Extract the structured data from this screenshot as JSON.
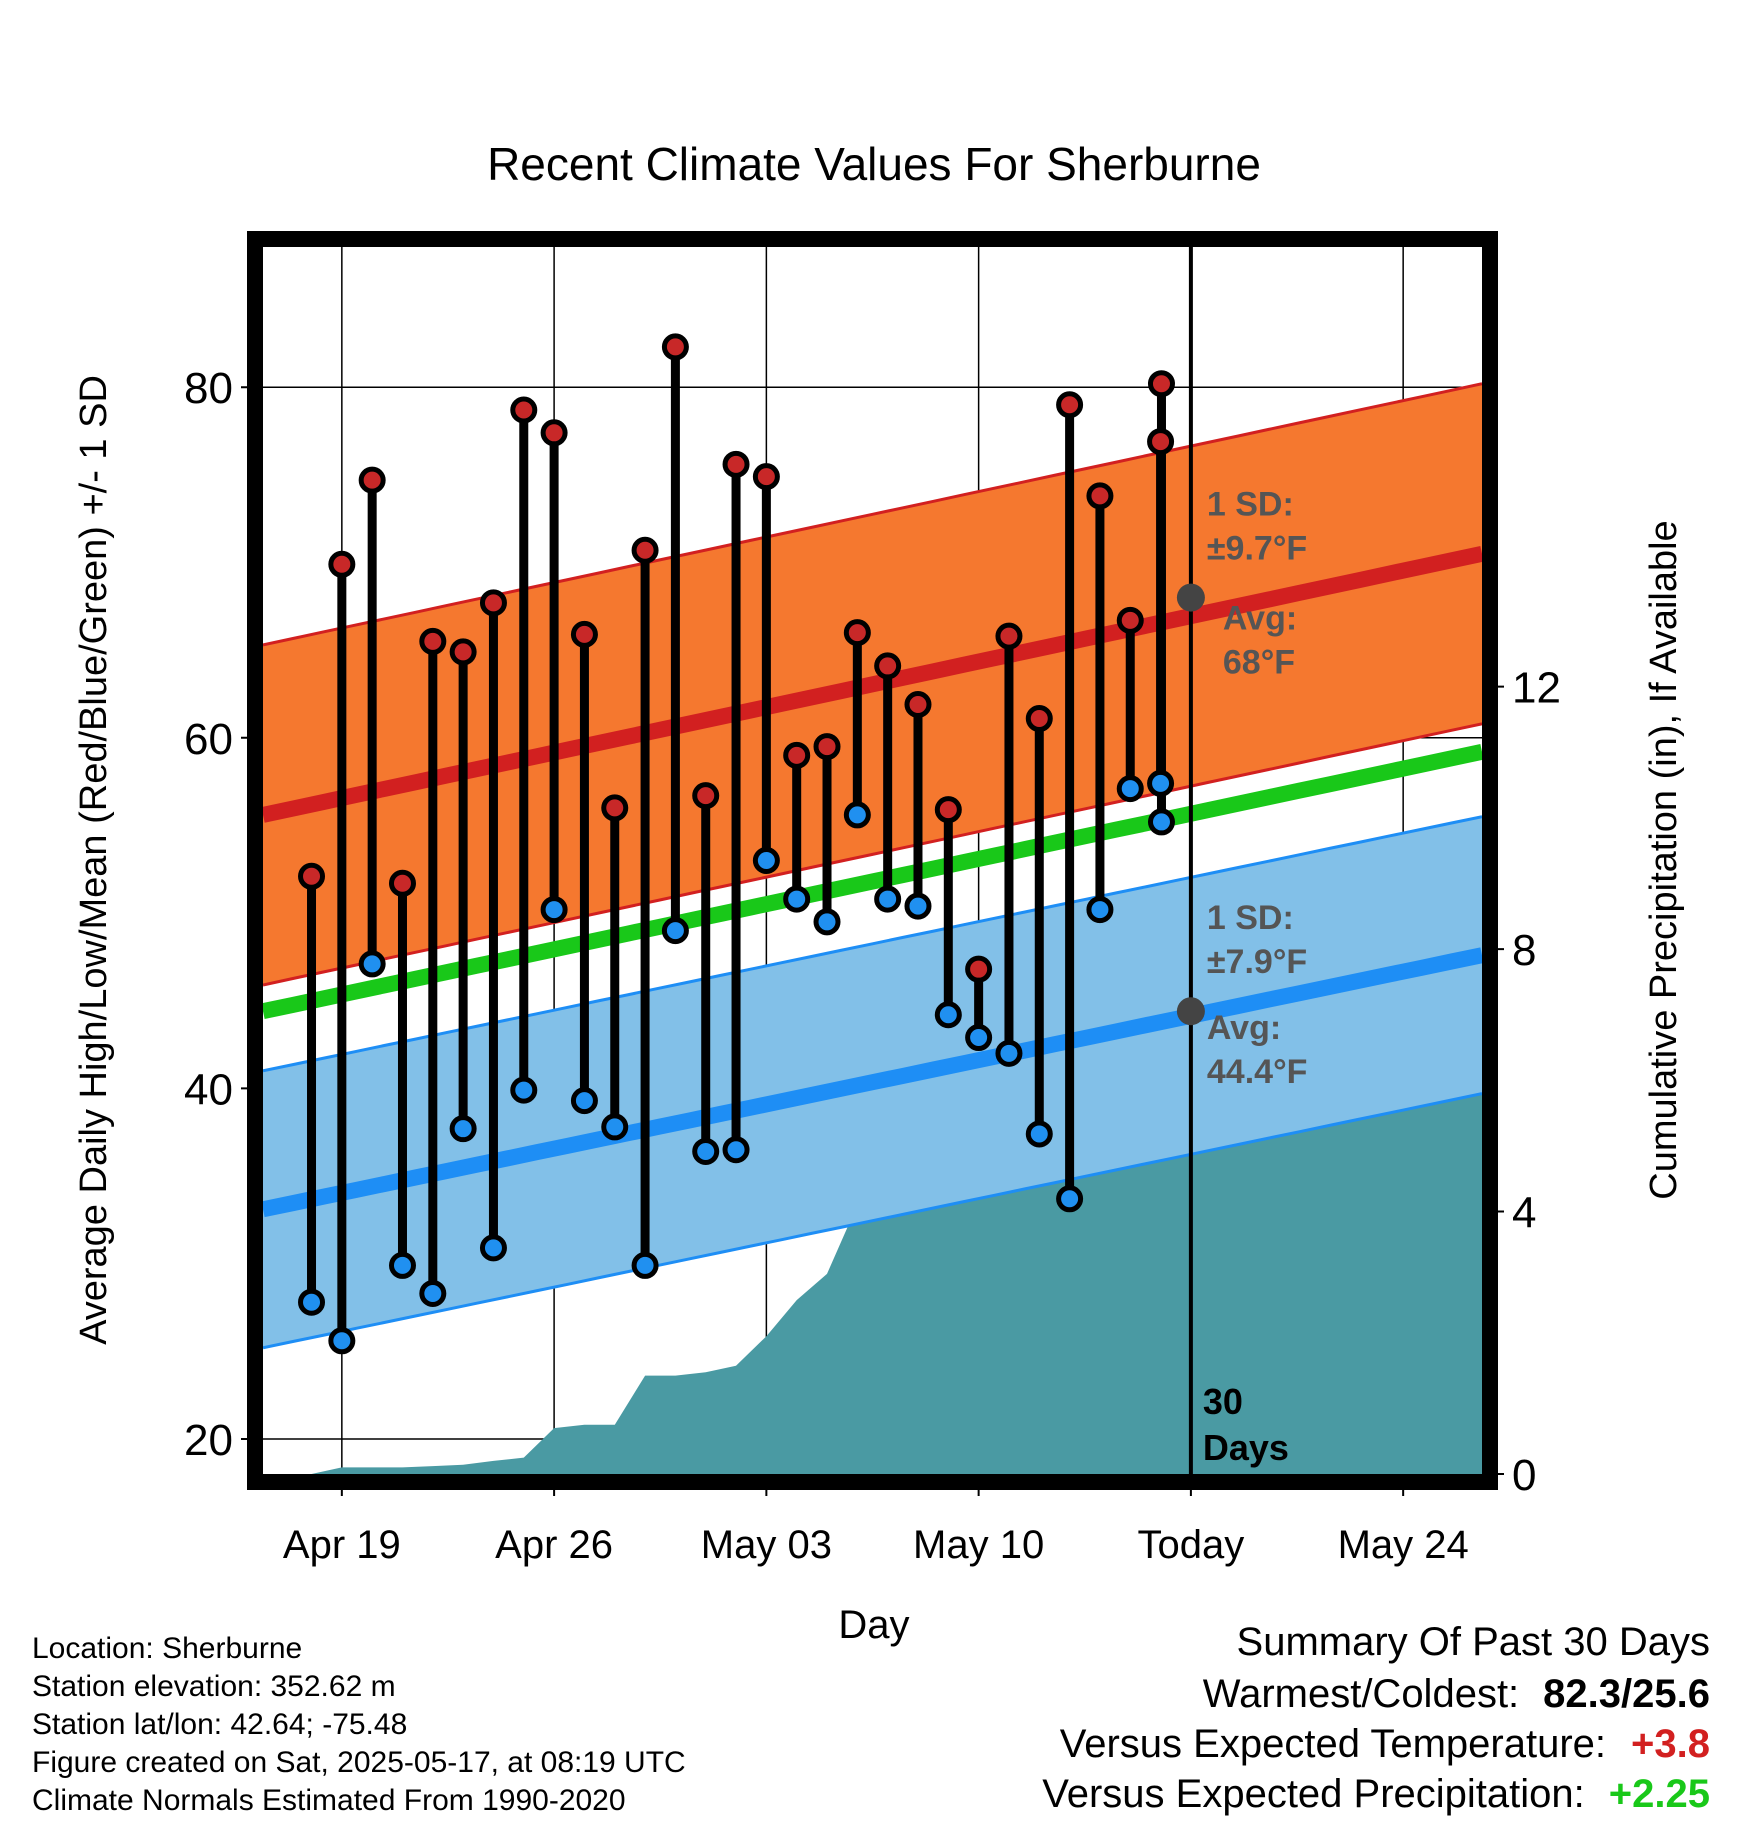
{
  "chart_data": {
    "type": "line",
    "title": "Recent Climate Values For Sherburne",
    "xlabel": "Day",
    "ylabel_left": "Average Daily High/Low/Mean (Red/Blue/Green) +/- 1 SD",
    "ylabel_right": "Cumulative Precipitation (in), If Available",
    "x_tick_labels": [
      "Apr 19",
      "Apr 26",
      "May 03",
      "May 10",
      "Today",
      "May 24"
    ],
    "x_tick_days": [
      2,
      9,
      16,
      23,
      30,
      37
    ],
    "x_range_days": [
      -0.6,
      39.6
    ],
    "ylim_left": [
      18,
      88
    ],
    "yticks_left": [
      20,
      40,
      60,
      80
    ],
    "ylim_right": [
      0,
      18.7
    ],
    "yticks_right": [
      0,
      4,
      8,
      12
    ],
    "today_day": 30,
    "today_marker_label": [
      "30",
      "Days"
    ],
    "observed": {
      "days": [
        1,
        2,
        3,
        4,
        5,
        6,
        7,
        8,
        9,
        10,
        11,
        12,
        13,
        14,
        15,
        16,
        17,
        18,
        19,
        20,
        21,
        22,
        23,
        24,
        25,
        26,
        27,
        28,
        29
      ],
      "high": [
        52.1,
        69.9,
        74.7,
        51.7,
        65.5,
        64.9,
        67.7,
        78.7,
        77.4,
        65.9,
        56.0,
        70.7,
        82.3,
        56.7,
        75.6,
        74.9,
        59.0,
        59.5,
        66.0,
        64.1,
        61.9,
        55.9,
        46.8,
        65.8,
        61.1,
        79.0,
        73.8,
        66.7,
        76.9
      ],
      "low": [
        27.8,
        25.6,
        47.1,
        29.9,
        28.3,
        37.7,
        30.9,
        39.9,
        50.2,
        39.3,
        37.8,
        29.9,
        49.0,
        36.4,
        36.5,
        53.0,
        50.8,
        49.5,
        55.6,
        50.8,
        50.4,
        44.2,
        42.9,
        42.0,
        37.4,
        33.7,
        50.2,
        57.1,
        57.4
      ],
      "extra_day30_high": 80.2,
      "extra_day30_low": 55.2
    },
    "normal_high": {
      "start": 55.6,
      "end": 70.5,
      "sd": 9.7
    },
    "normal_low": {
      "start": 33.1,
      "end": 47.6,
      "sd": 7.9
    },
    "normal_mean": {
      "start": 44.4,
      "end": 59.2
    },
    "precip_cumulative": {
      "days": [
        0,
        1,
        2,
        3,
        4,
        5,
        6,
        7,
        8,
        9,
        10,
        11,
        12,
        13,
        14,
        15,
        16,
        17,
        18,
        19,
        20,
        21,
        22,
        23,
        24,
        25,
        26,
        27,
        28,
        29,
        30,
        31,
        39.6
      ],
      "values": [
        0,
        0,
        0.1,
        0.1,
        0.1,
        0.12,
        0.14,
        0.2,
        0.25,
        0.7,
        0.75,
        0.75,
        1.5,
        1.5,
        1.55,
        1.65,
        2.1,
        2.65,
        3.05,
        4.1,
        4.2,
        4.2,
        5.1,
        5.1,
        5.1,
        5.1,
        5.1,
        5.15,
        5.15,
        5.95,
        5.95,
        5.95,
        5.95
      ]
    },
    "annotations": {
      "high_sd_label": "1 SD:",
      "high_sd_value": "±9.7°F",
      "high_avg_label": "Avg:",
      "high_avg_value": "68°F",
      "high_avg_y": 68,
      "low_sd_label": "1 SD:",
      "low_sd_value": "±7.9°F",
      "low_avg_label": "Avg:",
      "low_avg_value": "44.4°F",
      "low_avg_y": 44.4
    },
    "colors": {
      "high_band": "#f5782f",
      "high_line": "#d22020",
      "low_band": "#82c0e8",
      "low_line": "#1e8ef5",
      "mean_line": "#19c819",
      "precip": "#4a9aa3",
      "high_dot": "#c82828",
      "low_dot": "#2090f0",
      "annotation": "#555555",
      "avg_dot": "#444444"
    }
  },
  "info": {
    "location": "Location: Sherburne",
    "elevation": "Station elevation: 352.62 m",
    "latlon": "Station lat/lon: 42.64; -75.48",
    "created": "Figure created on Sat, 2025-05-17, at 08:19 UTC",
    "normals": "Climate Normals Estimated From 1990-2020"
  },
  "summary": {
    "title": "Summary Of Past 30 Days",
    "warm_cold_label": "Warmest/Coldest:",
    "warm_cold_value": "82.3/25.6",
    "temp_label": "Versus Expected Temperature:",
    "temp_value": "+3.8",
    "temp_color": "#d22020",
    "precip_label": "Versus Expected Precipitation:",
    "precip_value": "+2.25",
    "precip_color": "#19c819"
  }
}
